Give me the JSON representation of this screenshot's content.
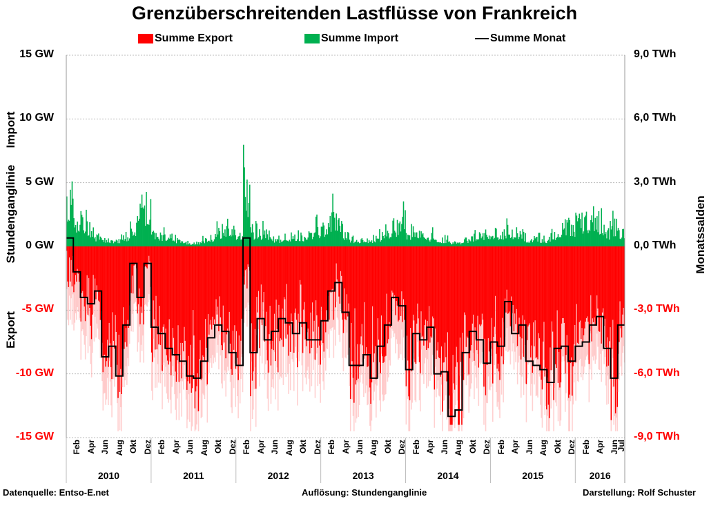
{
  "chart_data": {
    "type": "bar+line",
    "title": "Grenzüberschreitenden Lastflüsse von Frankreich",
    "legend": [
      {
        "label": "Summe Export",
        "color": "#ff0000"
      },
      {
        "label": "Summe Import",
        "color": "#00b050"
      },
      {
        "label": "Summe Monat",
        "color": "#000000"
      }
    ],
    "legend_position": "top",
    "left_axis": {
      "ylim": [
        -15,
        15
      ],
      "ticks": [
        "15 GW",
        "10 GW",
        "5 GW",
        "0 GW",
        "-5 GW",
        "-10 GW",
        "-15 GW"
      ],
      "tick_values": [
        15,
        10,
        5,
        0,
        -5,
        -10,
        -15
      ],
      "labels": {
        "top": "Import",
        "middle": "Stundenganglinie",
        "bottom": "Export"
      }
    },
    "right_axis": {
      "ylim": [
        -9,
        9
      ],
      "ticks": [
        "9,0 TWh",
        "6,0 TWh",
        "3,0 TWh",
        "0,0 TWh",
        "-3,0 TWh",
        "-6,0 TWh",
        "-9,0 TWh"
      ],
      "label": "Monatssalden"
    },
    "years": [
      "2010",
      "2011",
      "2012",
      "2013",
      "2014",
      "2015",
      "2016"
    ],
    "month_ticks": [
      "Feb",
      "Apr",
      "Jun",
      "Aug",
      "Okt",
      "Dez"
    ],
    "month_ticks_last": [
      "Feb",
      "Apr",
      "Jun",
      "Jul"
    ],
    "start": "2010-01",
    "months": 79,
    "monthly_balance_twh": [
      0.4,
      -1.2,
      -2.4,
      -2.7,
      -2.1,
      -5.2,
      -4.7,
      -6.1,
      -3.7,
      -0.8,
      -2.4,
      -0.8,
      -3.8,
      -4.1,
      -4.8,
      -5.1,
      -5.4,
      -6.1,
      -6.2,
      -5.4,
      -4.3,
      -3.7,
      -4.0,
      -5.0,
      -5.6,
      0.4,
      -5.0,
      -3.4,
      -4.4,
      -4.0,
      -3.4,
      -3.6,
      -4.1,
      -3.6,
      -4.4,
      -4.4,
      -3.5,
      -2.1,
      -1.7,
      -3.1,
      -5.6,
      -5.6,
      -5.1,
      -6.2,
      -4.7,
      -3.7,
      -2.4,
      -2.8,
      -5.8,
      -4.1,
      -4.4,
      -3.8,
      -6.0,
      -5.9,
      -8.0,
      -7.7,
      -5.0,
      -4.0,
      -4.4,
      -5.5,
      -4.5,
      -4.7,
      -2.6,
      -4.1,
      -3.7,
      -5.4,
      -5.6,
      -5.8,
      -6.4,
      -4.8,
      -4.7,
      -5.4,
      -4.7,
      -4.5,
      -3.7,
      -3.3,
      -4.8,
      -6.2,
      -3.7
    ],
    "hourly_import_peak_gw": [
      7,
      4,
      4,
      2,
      1.5,
      1,
      1,
      1,
      1.5,
      3,
      6,
      6,
      2,
      1.5,
      1,
      1,
      1,
      0.5,
      0.5,
      1,
      1,
      2,
      3,
      2.5,
      2,
      9,
      2,
      2,
      1.5,
      1,
      1,
      1.5,
      1.5,
      1.5,
      2,
      2.5,
      3,
      4.5,
      3,
      2,
      1,
      1,
      1,
      1,
      1.5,
      2,
      3,
      4.5,
      2,
      2.5,
      2,
      1.5,
      1,
      1,
      0.5,
      0.5,
      1,
      1.5,
      2,
      2,
      2,
      2,
      2.5,
      2,
      1.5,
      1,
      1.5,
      1,
      1.5,
      2,
      3,
      3,
      5,
      4,
      4.5,
      3,
      2,
      3,
      2
    ],
    "grid": true
  },
  "footer": {
    "source": "Datenquelle: Entso-E.net",
    "resolution": "Auflösung: Stundenganglinie",
    "author": "Darstellung: Rolf Schuster"
  }
}
